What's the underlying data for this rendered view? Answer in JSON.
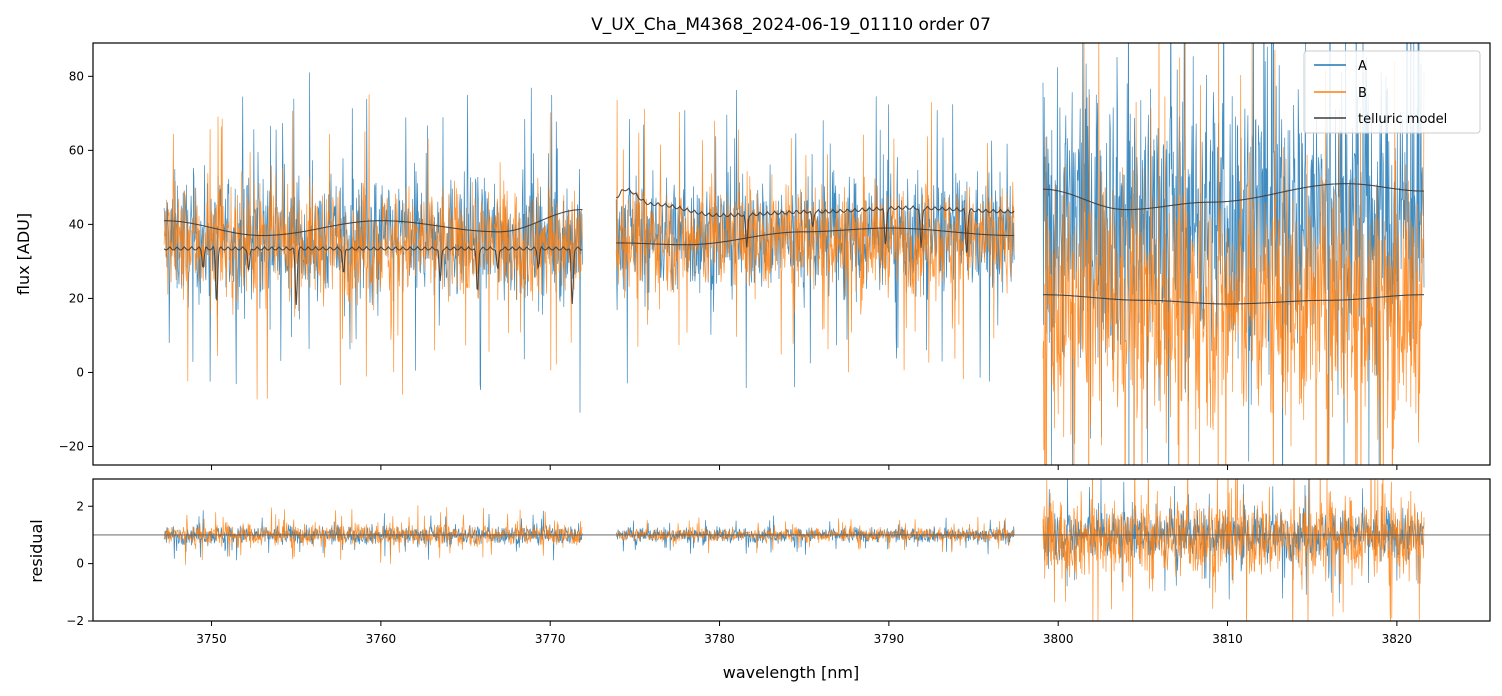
{
  "chart_data": [
    {
      "type": "line",
      "panel": "main",
      "title": "V_UX_Cha_M4368_2024-06-19_01110  order 07",
      "xlabel": "",
      "ylabel": "flux [ADU]",
      "xlim": [
        3743.0,
        3825.5
      ],
      "ylim": [
        -25,
        89
      ],
      "yticks": [
        -20,
        0,
        20,
        40,
        60,
        80
      ],
      "xticks": [
        3750,
        3760,
        3770,
        3780,
        3790,
        3800,
        3810,
        3820
      ],
      "segments": [
        {
          "range": [
            3747.2,
            3771.9
          ],
          "A": {
            "mean": 36,
            "sd": 14
          },
          "B": {
            "mean": 35,
            "sd": 13
          },
          "model_upper": {
            "x": [
              3747.2,
              3753,
              3760,
              3767,
              3771.9
            ],
            "y": [
              41,
              37,
              41,
              38,
              44
            ]
          },
          "model_lower": {
            "x": [
              3747.2,
              3771.9
            ],
            "y": [
              34,
              34
            ],
            "absorption": [
              [
                3749.5,
                5
              ],
              [
                3750.3,
                14
              ],
              [
                3752.2,
                6
              ],
              [
                3755.0,
                15
              ],
              [
                3757.8,
                7
              ],
              [
                3763.5,
                9
              ],
              [
                3765.7,
                12
              ],
              [
                3766.9,
                6
              ],
              [
                3769.3,
                5
              ],
              [
                3771.3,
                15
              ]
            ]
          }
        },
        {
          "range": [
            3773.9,
            3797.4
          ],
          "A": {
            "mean": 37,
            "sd": 13
          },
          "B": {
            "mean": 36,
            "sd": 12
          },
          "model_upper": {
            "x": [
              3773.9,
              3774.4,
              3776,
              3780,
              3786,
              3791,
              3797.4
            ],
            "y": [
              48,
              50,
              46,
              43,
              44,
              45,
              44
            ],
            "absorption": [
              [
                3781.6,
                9
              ],
              [
                3789.8,
                10
              ],
              [
                3791.9,
                11
              ],
              [
                3794.6,
                12
              ],
              [
                3785.5,
                4
              ]
            ]
          },
          "model_lower": {
            "x": [
              3773.9,
              3778,
              3785,
              3790,
              3797.4
            ],
            "y": [
              35,
              34.5,
              38,
              39,
              37
            ]
          }
        },
        {
          "range": [
            3799.1,
            3821.6
          ],
          "A": {
            "mean": 42,
            "sd": 32
          },
          "B": {
            "mean": 18,
            "sd": 28
          },
          "model_upper": {
            "x": [
              3799.1,
              3804,
              3809,
              3817,
              3821.6
            ],
            "y": [
              49.5,
              44,
              46,
              51,
              49
            ]
          },
          "model_lower": {
            "x": [
              3799.1,
              3805,
              3810,
              3816,
              3821.6
            ],
            "y": [
              21,
              19.5,
              18.5,
              19.5,
              21
            ]
          }
        }
      ],
      "series": [
        {
          "name": "A",
          "color": "#1f77b4"
        },
        {
          "name": "B",
          "color": "#ff7f0e"
        },
        {
          "name": "telluric model",
          "color": "#3b3b3b"
        }
      ],
      "legend_position": "top-right"
    },
    {
      "type": "line",
      "panel": "residual",
      "xlabel": "wavelength [nm]",
      "ylabel": "residual",
      "xlim": [
        3743.0,
        3825.5
      ],
      "ylim": [
        -2,
        2.95
      ],
      "yticks": [
        -2,
        0,
        2
      ],
      "xticks": [
        3750,
        3760,
        3770,
        3780,
        3790,
        3800,
        3810,
        3820
      ],
      "reference_line": 1,
      "segments": [
        {
          "range": [
            3747.2,
            3771.9
          ],
          "A": {
            "mean": 1,
            "sd": 0.28
          },
          "B": {
            "mean": 1,
            "sd": 0.33
          }
        },
        {
          "range": [
            3773.9,
            3797.4
          ],
          "A": {
            "mean": 1,
            "sd": 0.22
          },
          "B": {
            "mean": 1,
            "sd": 0.2
          }
        },
        {
          "range": [
            3799.1,
            3821.6
          ],
          "A": {
            "mean": 1,
            "sd": 0.75
          },
          "B": {
            "mean": 0.9,
            "sd": 1.2
          }
        }
      ]
    }
  ],
  "legend": {
    "items": [
      {
        "label": "A",
        "color": "#1f77b4"
      },
      {
        "label": "B",
        "color": "#ff7f0e"
      },
      {
        "label": "telluric model",
        "color": "#3b3b3b"
      }
    ]
  },
  "tick_labels": {
    "top_y": [
      "80",
      "60",
      "40",
      "20",
      "0",
      "−20"
    ],
    "bottom_y": [
      "2",
      "0",
      "−2"
    ],
    "x": [
      "3750",
      "3760",
      "3770",
      "3780",
      "3790",
      "3800",
      "3810",
      "3820"
    ]
  }
}
